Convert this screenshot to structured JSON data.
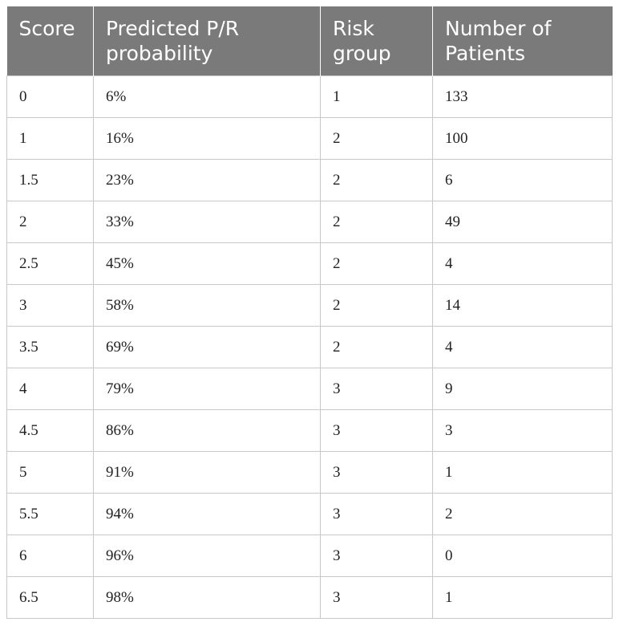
{
  "table": {
    "headers": [
      "Score",
      "Predicted P/R probability",
      "Risk group",
      "Number of Patients"
    ],
    "rows": [
      [
        "0",
        "6%",
        "1",
        "133"
      ],
      [
        "1",
        "16%",
        "2",
        "100"
      ],
      [
        "1.5",
        "23%",
        "2",
        "6"
      ],
      [
        "2",
        "33%",
        "2",
        "49"
      ],
      [
        "2.5",
        "45%",
        "2",
        "4"
      ],
      [
        "3",
        "58%",
        "2",
        "14"
      ],
      [
        "3.5",
        "69%",
        "2",
        "4"
      ],
      [
        "4",
        "79%",
        "3",
        "9"
      ],
      [
        "4.5",
        "86%",
        "3",
        "3"
      ],
      [
        "5",
        "91%",
        "3",
        "1"
      ],
      [
        "5.5",
        "94%",
        "3",
        "2"
      ],
      [
        "6",
        "96%",
        "3",
        "0"
      ],
      [
        "6.5",
        "98%",
        "3",
        "1"
      ]
    ]
  },
  "colors": {
    "header_background": "#7a7a7a",
    "header_text": "#ffffff",
    "cell_border": "#c8c8c8",
    "cell_text": "#222222"
  }
}
